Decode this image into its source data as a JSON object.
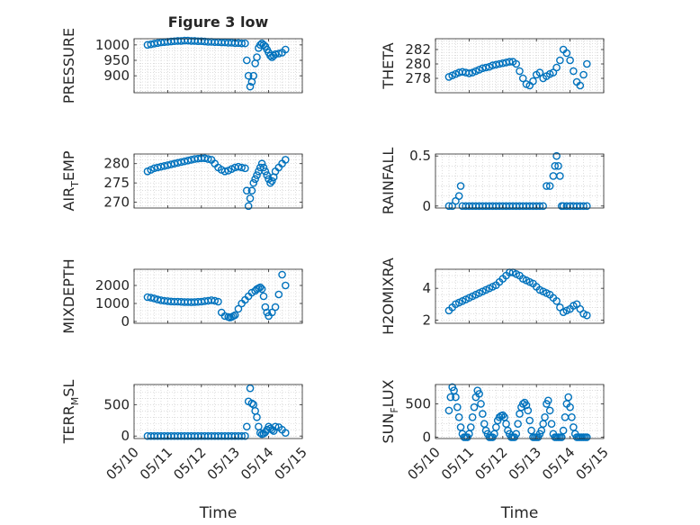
{
  "chart_data": {
    "title": "Figure 3 low",
    "xlabel": "Time",
    "x_ticks": [
      "05/10",
      "05/11",
      "05/12",
      "05/13",
      "05/14",
      "05/15"
    ],
    "xlim": [
      "05/10",
      "05/15"
    ],
    "marker": "open-circle",
    "color": "#0072BD",
    "grid": "minor dotted",
    "panels": [
      {
        "type": "scatter",
        "ylabel": "PRESSURE",
        "ylim": [
          845,
          1020
        ],
        "yticks": [
          900,
          950,
          1000
        ],
        "x": [
          10.4,
          10.5,
          10.6,
          10.7,
          10.8,
          10.9,
          11.0,
          11.1,
          11.2,
          11.3,
          11.4,
          11.5,
          11.6,
          11.7,
          11.8,
          11.9,
          12.0,
          12.1,
          12.2,
          12.3,
          12.4,
          12.5,
          12.6,
          12.7,
          12.8,
          12.9,
          13.0,
          13.1,
          13.2,
          13.3,
          13.35,
          13.4,
          13.45,
          13.5,
          13.55,
          13.6,
          13.65,
          13.7,
          13.75,
          13.8,
          13.85,
          13.9,
          13.95,
          14.0,
          14.05,
          14.1,
          14.15,
          14.2,
          14.3,
          14.4,
          14.5
        ],
        "y": [
          1000,
          1002,
          1004,
          1006,
          1008,
          1009,
          1010,
          1011,
          1012,
          1013,
          1013,
          1014,
          1014,
          1013,
          1013,
          1012,
          1012,
          1011,
          1010,
          1010,
          1009,
          1009,
          1008,
          1008,
          1007,
          1007,
          1006,
          1006,
          1005,
          1005,
          950,
          900,
          865,
          880,
          900,
          940,
          960,
          990,
          1000,
          1005,
          1000,
          995,
          985,
          975,
          965,
          960,
          965,
          970,
          972,
          975,
          985
        ]
      },
      {
        "type": "scatter",
        "ylabel": "THETA",
        "ylim": [
          276.0,
          283.5
        ],
        "yticks": [
          278,
          280,
          282
        ],
        "x": [
          10.4,
          10.5,
          10.6,
          10.7,
          10.8,
          10.9,
          11.0,
          11.1,
          11.2,
          11.3,
          11.4,
          11.5,
          11.6,
          11.7,
          11.8,
          11.9,
          12.0,
          12.1,
          12.2,
          12.3,
          12.4,
          12.5,
          12.6,
          12.7,
          12.8,
          12.9,
          13.0,
          13.1,
          13.2,
          13.3,
          13.4,
          13.5,
          13.6,
          13.7,
          13.8,
          13.9,
          14.0,
          14.1,
          14.2,
          14.3,
          14.4,
          14.5
        ],
        "y": [
          278.2,
          278.4,
          278.6,
          278.8,
          278.9,
          278.8,
          278.7,
          278.8,
          279.0,
          279.2,
          279.4,
          279.5,
          279.6,
          279.8,
          279.9,
          280.0,
          280.1,
          280.2,
          280.3,
          280.3,
          280.0,
          279.0,
          278.0,
          277.2,
          277.0,
          277.6,
          278.5,
          278.8,
          278.0,
          278.3,
          278.6,
          278.8,
          279.5,
          280.5,
          282.0,
          281.5,
          280.5,
          279.0,
          277.5,
          277.0,
          278.5,
          280.0
        ]
      },
      {
        "type": "scatter",
        "ylabel": "AIR_TEMP",
        "ylim": [
          268.5,
          282.5
        ],
        "yticks": [
          270,
          275,
          280
        ],
        "x": [
          10.4,
          10.5,
          10.6,
          10.7,
          10.8,
          10.9,
          11.0,
          11.1,
          11.2,
          11.3,
          11.4,
          11.5,
          11.6,
          11.7,
          11.8,
          11.9,
          12.0,
          12.1,
          12.2,
          12.3,
          12.4,
          12.5,
          12.6,
          12.7,
          12.8,
          12.9,
          13.0,
          13.1,
          13.2,
          13.3,
          13.35,
          13.4,
          13.45,
          13.5,
          13.55,
          13.6,
          13.65,
          13.7,
          13.75,
          13.8,
          13.85,
          13.9,
          13.95,
          14.0,
          14.05,
          14.1,
          14.15,
          14.2,
          14.3,
          14.4,
          14.5
        ],
        "y": [
          278.0,
          278.4,
          278.8,
          279.0,
          279.2,
          279.4,
          279.6,
          279.8,
          280.0,
          280.2,
          280.4,
          280.6,
          280.8,
          281.0,
          281.2,
          281.3,
          281.4,
          281.4,
          281.2,
          281.0,
          280.0,
          279.0,
          278.4,
          278.0,
          278.2,
          278.6,
          279.0,
          279.2,
          279.0,
          278.8,
          273.0,
          269.0,
          271.0,
          273.0,
          275.0,
          276.0,
          277.0,
          278.0,
          279.0,
          280.0,
          279.0,
          278.0,
          277.0,
          276.0,
          275.0,
          275.5,
          276.5,
          278.0,
          279.0,
          280.0,
          281.0
        ]
      },
      {
        "type": "scatter",
        "ylabel": "RAINFALL",
        "ylim": [
          -0.02,
          0.52
        ],
        "yticks": [
          0,
          0.5
        ],
        "x": [
          10.4,
          10.5,
          10.6,
          10.7,
          10.75,
          10.8,
          10.9,
          11.0,
          11.1,
          11.2,
          11.3,
          11.4,
          11.5,
          11.6,
          11.7,
          11.8,
          11.9,
          12.0,
          12.1,
          12.2,
          12.3,
          12.4,
          12.5,
          12.6,
          12.7,
          12.8,
          12.9,
          13.0,
          13.1,
          13.2,
          13.3,
          13.4,
          13.5,
          13.55,
          13.6,
          13.65,
          13.7,
          13.75,
          13.8,
          13.9,
          14.0,
          14.1,
          14.2,
          14.3,
          14.4,
          14.5
        ],
        "y": [
          0,
          0,
          0.05,
          0.1,
          0.2,
          0,
          0,
          0,
          0,
          0,
          0,
          0,
          0,
          0,
          0,
          0,
          0,
          0,
          0,
          0,
          0,
          0,
          0,
          0,
          0,
          0,
          0,
          0,
          0,
          0,
          0.2,
          0.2,
          0.3,
          0.4,
          0.5,
          0.4,
          0.3,
          0,
          0,
          0,
          0,
          0,
          0,
          0,
          0,
          0
        ]
      },
      {
        "type": "scatter",
        "ylabel": "MIXDEPTH",
        "ylim": [
          -100,
          2900
        ],
        "yticks": [
          0,
          1000,
          2000
        ],
        "x": [
          10.4,
          10.5,
          10.6,
          10.7,
          10.8,
          10.9,
          11.0,
          11.1,
          11.2,
          11.3,
          11.4,
          11.5,
          11.6,
          11.7,
          11.8,
          11.9,
          12.0,
          12.1,
          12.2,
          12.3,
          12.4,
          12.5,
          12.6,
          12.7,
          12.8,
          12.85,
          12.9,
          12.95,
          13.0,
          13.1,
          13.2,
          13.3,
          13.4,
          13.5,
          13.6,
          13.65,
          13.7,
          13.75,
          13.8,
          13.85,
          13.9,
          13.95,
          14.0,
          14.1,
          14.2,
          14.3,
          14.4,
          14.5
        ],
        "y": [
          1350,
          1320,
          1280,
          1220,
          1180,
          1150,
          1130,
          1110,
          1100,
          1100,
          1090,
          1080,
          1080,
          1070,
          1080,
          1090,
          1100,
          1130,
          1150,
          1180,
          1150,
          1100,
          500,
          300,
          250,
          220,
          250,
          300,
          350,
          700,
          1000,
          1200,
          1400,
          1600,
          1700,
          1800,
          1850,
          1900,
          1800,
          1400,
          800,
          500,
          300,
          500,
          800,
          1500,
          2600,
          2000
        ]
      },
      {
        "type": "scatter",
        "ylabel": "H2OMIXRA",
        "ylim": [
          1.8,
          5.2
        ],
        "yticks": [
          2,
          4
        ],
        "x": [
          10.4,
          10.5,
          10.6,
          10.7,
          10.8,
          10.9,
          11.0,
          11.1,
          11.2,
          11.3,
          11.4,
          11.5,
          11.6,
          11.7,
          11.8,
          11.9,
          12.0,
          12.1,
          12.2,
          12.3,
          12.4,
          12.5,
          12.6,
          12.7,
          12.8,
          12.9,
          13.0,
          13.1,
          13.2,
          13.3,
          13.4,
          13.5,
          13.6,
          13.7,
          13.8,
          13.9,
          14.0,
          14.1,
          14.2,
          14.3,
          14.4,
          14.5
        ],
        "y": [
          2.6,
          2.8,
          3.0,
          3.1,
          3.2,
          3.3,
          3.4,
          3.5,
          3.6,
          3.7,
          3.8,
          3.9,
          4.0,
          4.1,
          4.2,
          4.4,
          4.6,
          4.8,
          5.0,
          5.0,
          4.9,
          4.8,
          4.6,
          4.5,
          4.4,
          4.3,
          4.1,
          3.9,
          3.8,
          3.7,
          3.6,
          3.4,
          3.2,
          2.8,
          2.5,
          2.6,
          2.7,
          2.9,
          3.0,
          2.7,
          2.4,
          2.3
        ]
      },
      {
        "type": "scatter",
        "ylabel": "TERR_MSL",
        "ylim": [
          -40,
          820
        ],
        "yticks": [
          0,
          500
        ],
        "x": [
          10.4,
          10.5,
          10.6,
          10.7,
          10.8,
          10.9,
          11.0,
          11.1,
          11.2,
          11.3,
          11.4,
          11.5,
          11.6,
          11.7,
          11.8,
          11.9,
          12.0,
          12.1,
          12.2,
          12.3,
          12.4,
          12.5,
          12.6,
          12.7,
          12.8,
          12.9,
          13.0,
          13.1,
          13.2,
          13.3,
          13.35,
          13.4,
          13.45,
          13.5,
          13.55,
          13.6,
          13.65,
          13.7,
          13.75,
          13.8,
          13.85,
          13.9,
          13.95,
          14.0,
          14.05,
          14.1,
          14.15,
          14.2,
          14.3,
          14.4,
          14.5
        ],
        "y": [
          0,
          0,
          0,
          0,
          0,
          0,
          0,
          0,
          0,
          0,
          0,
          0,
          0,
          0,
          0,
          0,
          0,
          0,
          0,
          0,
          0,
          0,
          0,
          0,
          0,
          0,
          0,
          0,
          0,
          0,
          150,
          550,
          760,
          520,
          500,
          400,
          300,
          150,
          50,
          30,
          40,
          60,
          100,
          150,
          120,
          100,
          80,
          150,
          140,
          100,
          50
        ]
      },
      {
        "type": "scatter",
        "ylabel": "SUN_FLUX",
        "ylim": [
          -20,
          790
        ],
        "yticks": [
          0,
          500
        ],
        "x": [
          10.4,
          10.45,
          10.5,
          10.55,
          10.6,
          10.65,
          10.7,
          10.75,
          10.8,
          10.85,
          10.9,
          10.95,
          11.0,
          11.05,
          11.1,
          11.15,
          11.2,
          11.25,
          11.3,
          11.35,
          11.4,
          11.45,
          11.5,
          11.55,
          11.6,
          11.65,
          11.7,
          11.75,
          11.8,
          11.85,
          11.9,
          11.95,
          12.0,
          12.05,
          12.1,
          12.15,
          12.2,
          12.25,
          12.3,
          12.35,
          12.4,
          12.45,
          12.5,
          12.55,
          12.6,
          12.65,
          12.7,
          12.75,
          12.8,
          12.85,
          12.9,
          12.95,
          13.0,
          13.05,
          13.1,
          13.15,
          13.2,
          13.25,
          13.3,
          13.35,
          13.4,
          13.45,
          13.5,
          13.55,
          13.6,
          13.65,
          13.7,
          13.75,
          13.8,
          13.85,
          13.9,
          13.95,
          14.0,
          14.05,
          14.1,
          14.15,
          14.2,
          14.25,
          14.3,
          14.35,
          14.4,
          14.45,
          14.5
        ],
        "y": [
          400,
          600,
          750,
          700,
          600,
          450,
          300,
          150,
          50,
          0,
          0,
          0,
          50,
          150,
          300,
          450,
          600,
          700,
          650,
          500,
          350,
          200,
          100,
          50,
          0,
          0,
          0,
          50,
          150,
          250,
          300,
          320,
          330,
          300,
          200,
          100,
          50,
          0,
          0,
          0,
          50,
          200,
          350,
          450,
          500,
          520,
          480,
          400,
          250,
          100,
          0,
          0,
          0,
          0,
          50,
          100,
          200,
          300,
          500,
          550,
          400,
          200,
          50,
          0,
          0,
          0,
          0,
          0,
          100,
          300,
          500,
          600,
          450,
          300,
          150,
          50,
          0,
          0,
          0,
          0,
          0,
          0,
          0
        ]
      }
    ]
  }
}
